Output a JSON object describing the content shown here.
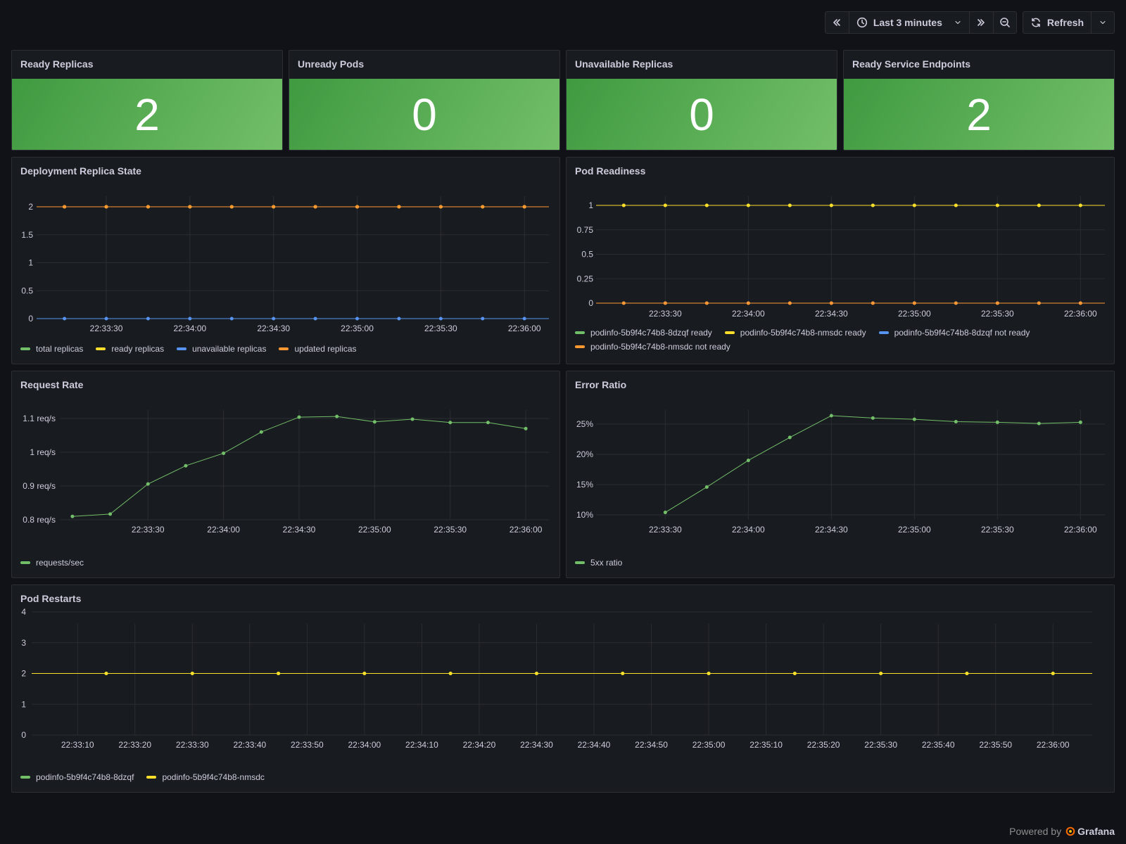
{
  "toolbar": {
    "time_range": "Last 3 minutes",
    "refresh_label": "Refresh"
  },
  "stats": [
    {
      "title": "Ready Replicas",
      "value": "2"
    },
    {
      "title": "Unready Pods",
      "value": "0"
    },
    {
      "title": "Unavailable Replicas",
      "value": "0"
    },
    {
      "title": "Ready Service Endpoints",
      "value": "2"
    }
  ],
  "colors": {
    "green": "#73bf69",
    "yellow": "#fade2a",
    "blue": "#5794f2",
    "orange": "#ff9830"
  },
  "chart_data": [
    {
      "type": "line",
      "title": "Deployment Replica State",
      "x": [
        "22:33:15",
        "22:33:30",
        "22:33:45",
        "22:34:00",
        "22:34:15",
        "22:34:30",
        "22:34:45",
        "22:35:00",
        "22:35:15",
        "22:35:30",
        "22:35:45",
        "22:36:00"
      ],
      "x_ticks": [
        "22:33:30",
        "22:34:00",
        "22:34:30",
        "22:35:00",
        "22:35:30",
        "22:36:00"
      ],
      "y_ticks": [
        "0",
        "0.5",
        "1",
        "1.5",
        "2"
      ],
      "ylim": [
        0,
        2.2
      ],
      "series": [
        {
          "name": "total replicas",
          "color": "#73bf69",
          "values": [
            2,
            2,
            2,
            2,
            2,
            2,
            2,
            2,
            2,
            2,
            2,
            2
          ]
        },
        {
          "name": "ready replicas",
          "color": "#fade2a",
          "values": [
            2,
            2,
            2,
            2,
            2,
            2,
            2,
            2,
            2,
            2,
            2,
            2
          ]
        },
        {
          "name": "unavailable replicas",
          "color": "#5794f2",
          "values": [
            0,
            0,
            0,
            0,
            0,
            0,
            0,
            0,
            0,
            0,
            0,
            0
          ]
        },
        {
          "name": "updated replicas",
          "color": "#ff9830",
          "values": [
            2,
            2,
            2,
            2,
            2,
            2,
            2,
            2,
            2,
            2,
            2,
            2
          ]
        }
      ]
    },
    {
      "type": "line",
      "title": "Pod Readiness",
      "x": [
        "22:33:15",
        "22:33:30",
        "22:33:45",
        "22:34:00",
        "22:34:15",
        "22:34:30",
        "22:34:45",
        "22:35:00",
        "22:35:15",
        "22:35:30",
        "22:35:45",
        "22:36:00"
      ],
      "x_ticks": [
        "22:33:30",
        "22:34:00",
        "22:34:30",
        "22:35:00",
        "22:35:30",
        "22:36:00"
      ],
      "y_ticks": [
        "0",
        "0.25",
        "0.5",
        "0.75",
        "1"
      ],
      "ylim": [
        0,
        1.05
      ],
      "series": [
        {
          "name": "podinfo-5b9f4c74b8-8dzqf ready",
          "color": "#73bf69",
          "values": [
            1,
            1,
            1,
            1,
            1,
            1,
            1,
            1,
            1,
            1,
            1,
            1
          ]
        },
        {
          "name": "podinfo-5b9f4c74b8-nmsdc ready",
          "color": "#fade2a",
          "values": [
            1,
            1,
            1,
            1,
            1,
            1,
            1,
            1,
            1,
            1,
            1,
            1
          ]
        },
        {
          "name": "podinfo-5b9f4c74b8-8dzqf not ready",
          "color": "#5794f2",
          "values": [
            0,
            0,
            0,
            0,
            0,
            0,
            0,
            0,
            0,
            0,
            0,
            0
          ]
        },
        {
          "name": "podinfo-5b9f4c74b8-nmsdc not ready",
          "color": "#ff9830",
          "values": [
            0,
            0,
            0,
            0,
            0,
            0,
            0,
            0,
            0,
            0,
            0,
            0
          ]
        }
      ]
    },
    {
      "type": "line",
      "title": "Request Rate",
      "x": [
        "22:33:00",
        "22:33:15",
        "22:33:30",
        "22:33:45",
        "22:34:00",
        "22:34:15",
        "22:34:30",
        "22:34:45",
        "22:35:00",
        "22:35:15",
        "22:35:30",
        "22:35:45",
        "22:36:00"
      ],
      "x_ticks": [
        "22:33:30",
        "22:34:00",
        "22:34:30",
        "22:35:00",
        "22:35:30",
        "22:36:00"
      ],
      "y_ticks": [
        "0.8 req/s",
        "0.9 req/s",
        "1 req/s",
        "1.1 req/s"
      ],
      "ylim": [
        0.8,
        1.13
      ],
      "series": [
        {
          "name": "requests/sec",
          "color": "#73bf69",
          "values": [
            0.81,
            0.817,
            0.906,
            0.96,
            0.997,
            1.06,
            1.104,
            1.106,
            1.09,
            1.098,
            1.088,
            1.088,
            1.07
          ]
        }
      ]
    },
    {
      "type": "line",
      "title": "Error Ratio",
      "x": [
        "22:33:30",
        "22:33:45",
        "22:34:00",
        "22:34:15",
        "22:34:30",
        "22:34:45",
        "22:35:00",
        "22:35:15",
        "22:35:30",
        "22:35:45",
        "22:36:00"
      ],
      "x_ticks": [
        "22:33:30",
        "22:34:00",
        "22:34:30",
        "22:35:00",
        "22:35:30",
        "22:36:00"
      ],
      "y_ticks": [
        "10%",
        "15%",
        "20%",
        "25%"
      ],
      "ylim": [
        9.5,
        26.5
      ],
      "series": [
        {
          "name": "5xx ratio",
          "color": "#73bf69",
          "values": [
            10.4,
            14.6,
            19.0,
            22.8,
            26.4,
            26.0,
            25.8,
            25.4,
            25.3,
            25.1,
            25.3
          ]
        }
      ]
    },
    {
      "type": "line",
      "title": "Pod Restarts",
      "x": [
        "22:33:15",
        "22:33:30",
        "22:33:45",
        "22:34:00",
        "22:34:15",
        "22:34:30",
        "22:34:45",
        "22:35:00",
        "22:35:15",
        "22:35:30",
        "22:35:45",
        "22:36:00"
      ],
      "x_ticks": [
        "22:33:10",
        "22:33:20",
        "22:33:30",
        "22:33:40",
        "22:33:50",
        "22:34:00",
        "22:34:10",
        "22:34:20",
        "22:34:30",
        "22:34:40",
        "22:34:50",
        "22:35:00",
        "22:35:10",
        "22:35:20",
        "22:35:30",
        "22:35:40",
        "22:35:50",
        "22:36:00"
      ],
      "y_ticks": [
        "0",
        "1",
        "2",
        "3",
        "4"
      ],
      "ylim": [
        0,
        4
      ],
      "series": [
        {
          "name": "podinfo-5b9f4c74b8-8dzqf",
          "color": "#73bf69",
          "values": [
            2,
            2,
            2,
            2,
            2,
            2,
            2,
            2,
            2,
            2,
            2,
            2
          ]
        },
        {
          "name": "podinfo-5b9f4c74b8-nmsdc",
          "color": "#fade2a",
          "values": [
            2,
            2,
            2,
            2,
            2,
            2,
            2,
            2,
            2,
            2,
            2,
            2
          ]
        }
      ]
    }
  ],
  "footer": {
    "powered_by": "Powered by",
    "brand": "Grafana"
  }
}
